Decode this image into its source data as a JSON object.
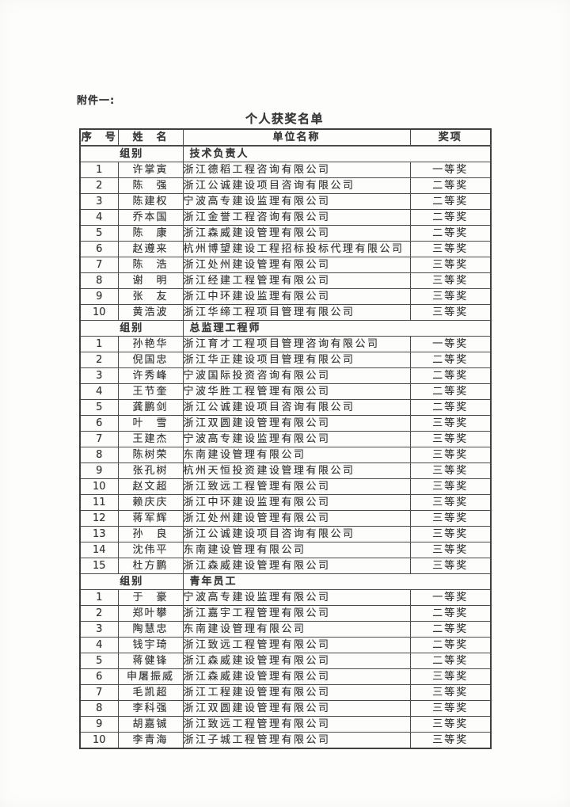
{
  "page": {
    "attachment_label": "附件一:",
    "title": "个人获奖名单"
  },
  "table": {
    "columns": [
      "序　号",
      "姓　名",
      "单位名称",
      "奖项"
    ],
    "group_row_label": "组别",
    "sections": [
      {
        "group": "技术负责人",
        "rows": [
          [
            "1",
            "许掌寅",
            "浙江德稻工程咨询有限公司",
            "一等奖"
          ],
          [
            "2",
            "陈　强",
            "浙江公诚建设项目咨询有限公司",
            "二等奖"
          ],
          [
            "3",
            "陈建权",
            "宁波高专建设监理有限公司",
            "二等奖"
          ],
          [
            "4",
            "乔本国",
            "浙江金誉工程咨询有限公司",
            "二等奖"
          ],
          [
            "5",
            "陈　康",
            "浙江森威建设管理有限公司",
            "二等奖"
          ],
          [
            "6",
            "赵遵来",
            "杭州博望建设工程招标投标代理有限公司",
            "三等奖"
          ],
          [
            "7",
            "陈　浩",
            "浙江处州建设管理有限公司",
            "三等奖"
          ],
          [
            "8",
            "谢　明",
            "浙江经建工程管理有限公司",
            "三等奖"
          ],
          [
            "9",
            "张　友",
            "浙江中环建设监理有限公司",
            "三等奖"
          ],
          [
            "10",
            "黄浩波",
            "浙江华缔工程项目管理有限公司",
            "三等奖"
          ]
        ]
      },
      {
        "group": "总监理工程师",
        "rows": [
          [
            "1",
            "孙艳华",
            "浙江育才工程项目管理咨询有限公司",
            "一等奖"
          ],
          [
            "2",
            "倪国忠",
            "浙江华正建设项目管理有限公司",
            "二等奖"
          ],
          [
            "3",
            "许秀峰",
            "宁波国际投资咨询有限公司",
            "二等奖"
          ],
          [
            "4",
            "王节奎",
            "宁波华胜工程管理有限公司",
            "二等奖"
          ],
          [
            "5",
            "龚鹏剑",
            "浙江公诚建设项目咨询有限公司",
            "二等奖"
          ],
          [
            "6",
            "叶　雪",
            "浙江双圆建设管理有限公司",
            "三等奖"
          ],
          [
            "7",
            "王建杰",
            "宁波高专建设监理有限公司",
            "三等奖"
          ],
          [
            "8",
            "陈树荣",
            "东南建设管理有限公司",
            "三等奖"
          ],
          [
            "9",
            "张孔树",
            "杭州天恒投资建设管理有限公司",
            "三等奖"
          ],
          [
            "10",
            "赵文超",
            "浙江致远工程管理有限公司",
            "三等奖"
          ],
          [
            "11",
            "赖庆庆",
            "浙江中环建设监理有限公司",
            "三等奖"
          ],
          [
            "12",
            "蒋军辉",
            "浙江处州建设管理有限公司",
            "三等奖"
          ],
          [
            "13",
            "孙　良",
            "浙江公诚建设项目咨询有限公司",
            "三等奖"
          ],
          [
            "14",
            "沈伟平",
            "东南建设管理有限公司",
            "三等奖"
          ],
          [
            "15",
            "杜方鹏",
            "浙江森威建设管理有限公司",
            "三等奖"
          ]
        ]
      },
      {
        "group": "青年员工",
        "rows": [
          [
            "1",
            "于　豪",
            "宁波高专建设监理有限公司",
            "一等奖"
          ],
          [
            "2",
            "郑叶攀",
            "浙江嘉宇工程管理有限公司",
            "二等奖"
          ],
          [
            "3",
            "陶慧忠",
            "东南建设管理有限公司",
            "二等奖"
          ],
          [
            "4",
            "钱宇琦",
            "浙江致远工程管理有限公司",
            "二等奖"
          ],
          [
            "5",
            "蒋健锋",
            "浙江森威建设管理有限公司",
            "二等奖"
          ],
          [
            "6",
            "申屠振威",
            "浙江森威建设管理有限公司",
            "三等奖"
          ],
          [
            "7",
            "毛凯超",
            "浙江工程建设管理有限公司",
            "三等奖"
          ],
          [
            "8",
            "李科强",
            "浙江双圆建设管理有限公司",
            "三等奖"
          ],
          [
            "9",
            "胡嘉铖",
            "浙江致远工程管理有限公司",
            "三等奖"
          ],
          [
            "10",
            "李青海",
            "浙江子城工程管理有限公司",
            "三等奖"
          ]
        ]
      }
    ]
  },
  "colors": {
    "text": "#383838",
    "border": "#454545",
    "page_background": "#fdfdfc"
  }
}
